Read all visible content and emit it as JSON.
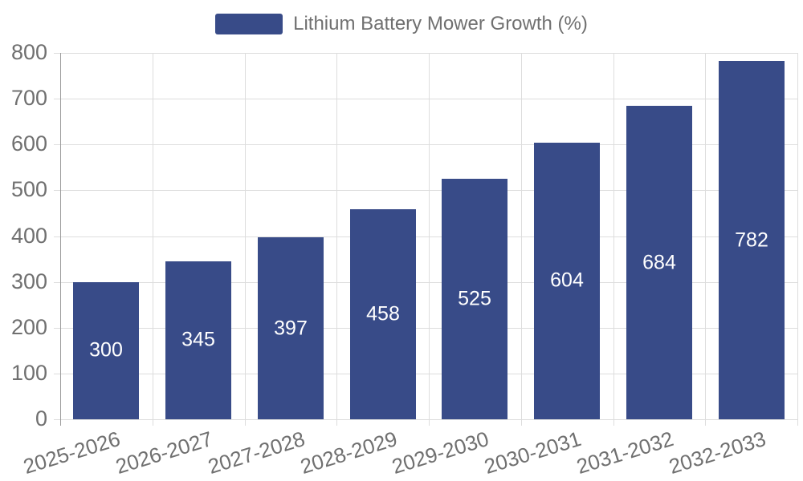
{
  "chart_data": {
    "type": "bar",
    "title": "",
    "legend": "Lithium Battery Mower Growth (%)",
    "legend_position": "top-center",
    "categories": [
      "2025-2026",
      "2026-2027",
      "2027-2028",
      "2028-2029",
      "2029-2030",
      "2030-2031",
      "2031-2032",
      "2032-2033"
    ],
    "values": [
      300,
      345,
      397,
      458,
      525,
      604,
      684,
      782
    ],
    "xlabel": "",
    "ylabel": "",
    "ylim": [
      0,
      800
    ],
    "yticks": [
      0,
      100,
      200,
      300,
      400,
      500,
      600,
      700,
      800
    ],
    "grid": true,
    "value_labels": "inside-center",
    "x_label_rotation_deg": -17,
    "colors": {
      "bar": "#384B88",
      "grid": "#DDDDDD",
      "axis_line": "#9B9B9B",
      "tick_text": "#707070",
      "value_label": "#FFFFFF",
      "background": "#FFFFFF"
    }
  }
}
